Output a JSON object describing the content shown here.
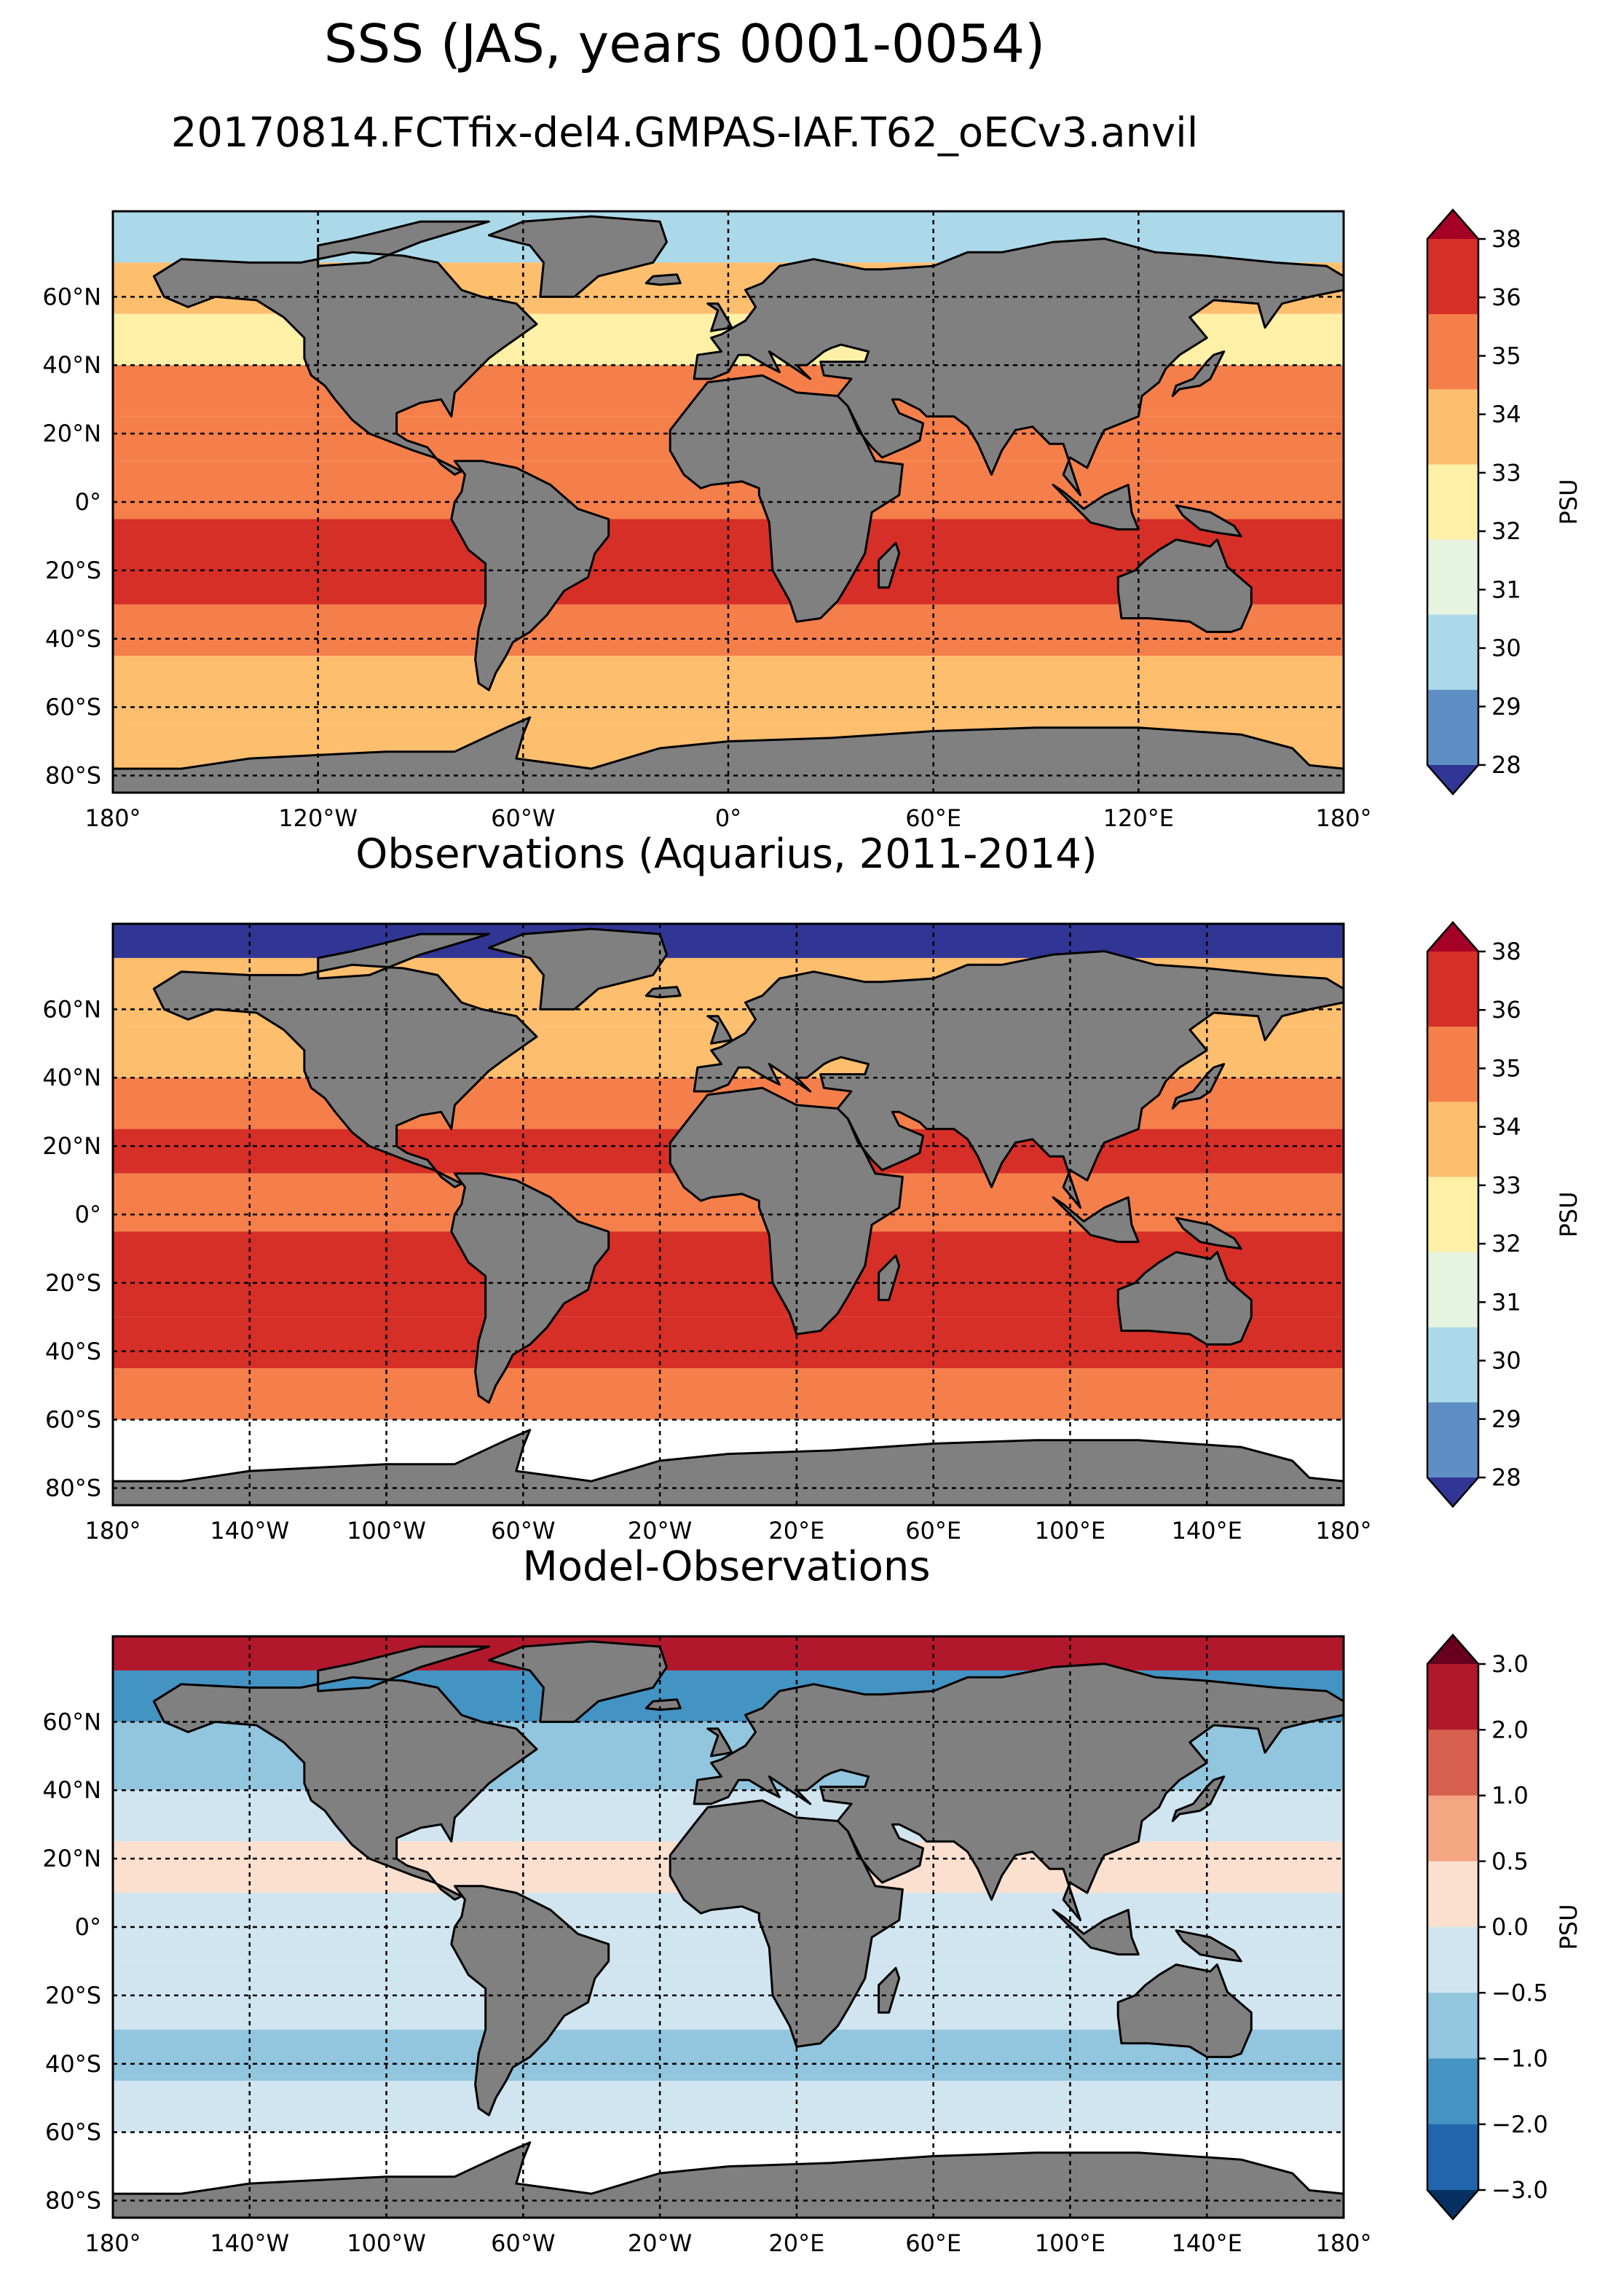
{
  "title": "SSS (JAS, years 0001-0054)",
  "subtitle": "20170814.FCTfix-del4.GMPAS-IAF.T62_oECv3.anvil",
  "colors": {
    "land": "#808080",
    "sss": [
      "#313695",
      "#5e8fc4",
      "#abd9e9",
      "#e7f3e1",
      "#fef0a6",
      "#fdbe6e",
      "#f57f4a",
      "#d62f27",
      "#a50026"
    ],
    "diff": [
      "#053061",
      "#2166ac",
      "#4393c3",
      "#92c5de",
      "#d1e5f0",
      "#fbe0d0",
      "#f4a582",
      "#d6604d",
      "#b2182b",
      "#67001f"
    ]
  },
  "chart_data": [
    {
      "type": "map",
      "name": "model",
      "title": "",
      "lat_ticks": [
        "60°N",
        "40°N",
        "20°N",
        "0°",
        "20°S",
        "40°S",
        "60°S",
        "80°S"
      ],
      "lon_ticks": [
        "180°",
        "120°W",
        "60°W",
        "0°",
        "60°E",
        "120°E",
        "180°"
      ],
      "colorbar": {
        "label": "PSU",
        "ticks": [
          "38",
          "36",
          "35",
          "34",
          "33",
          "32",
          "31",
          "30",
          "29",
          "28"
        ]
      },
      "zonal_bands_psu": [
        {
          "lat": [
            70,
            85
          ],
          "value": 30.5
        },
        {
          "lat": [
            55,
            70
          ],
          "value": 33.5
        },
        {
          "lat": [
            40,
            55
          ],
          "value": 32.8
        },
        {
          "lat": [
            25,
            40
          ],
          "value": 34.2
        },
        {
          "lat": [
            12,
            25
          ],
          "value": 34.6
        },
        {
          "lat": [
            -5,
            12
          ],
          "value": 34.3
        },
        {
          "lat": [
            -30,
            -5
          ],
          "value": 35.3
        },
        {
          "lat": [
            -45,
            -30
          ],
          "value": 34.8
        },
        {
          "lat": [
            -65,
            -45
          ],
          "value": 33.8
        },
        {
          "lat": [
            -85,
            -65
          ],
          "value": 33.3
        }
      ]
    },
    {
      "type": "map",
      "name": "observations",
      "title": "Observations (Aquarius, 2011-2014)",
      "lat_ticks": [
        "60°N",
        "40°N",
        "20°N",
        "0°",
        "20°S",
        "40°S",
        "60°S",
        "80°S"
      ],
      "lon_ticks": [
        "180°",
        "140°W",
        "100°W",
        "60°W",
        "20°W",
        "20°E",
        "60°E",
        "100°E",
        "140°E",
        "180°"
      ],
      "colorbar": {
        "label": "PSU",
        "ticks": [
          "38",
          "36",
          "35",
          "34",
          "33",
          "32",
          "31",
          "30",
          "29",
          "28"
        ]
      },
      "zonal_bands_psu": [
        {
          "lat": [
            75,
            85
          ],
          "value": 28.5
        },
        {
          "lat": [
            55,
            75
          ],
          "value": 33.5
        },
        {
          "lat": [
            40,
            55
          ],
          "value": 33.2
        },
        {
          "lat": [
            25,
            40
          ],
          "value": 34.6
        },
        {
          "lat": [
            12,
            25
          ],
          "value": 35.2
        },
        {
          "lat": [
            -5,
            12
          ],
          "value": 34.4
        },
        {
          "lat": [
            -30,
            -5
          ],
          "value": 35.6
        },
        {
          "lat": [
            -45,
            -30
          ],
          "value": 35.2
        },
        {
          "lat": [
            -60,
            -45
          ],
          "value": 34.4
        }
      ]
    },
    {
      "type": "map",
      "name": "difference",
      "title": "Model-Observations",
      "lat_ticks": [
        "60°N",
        "40°N",
        "20°N",
        "0°",
        "20°S",
        "40°S",
        "60°S",
        "80°S"
      ],
      "lon_ticks": [
        "180°",
        "140°W",
        "100°W",
        "60°W",
        "20°W",
        "20°E",
        "60°E",
        "100°E",
        "140°E",
        "180°"
      ],
      "colorbar": {
        "label": "PSU",
        "ticks": [
          "3.0",
          "2.0",
          "1.0",
          "0.5",
          "0.0",
          "−0.5",
          "−1.0",
          "−2.0",
          "−3.0"
        ]
      },
      "zonal_bands_psu": [
        {
          "lat": [
            75,
            85
          ],
          "value": 2.5
        },
        {
          "lat": [
            60,
            75
          ],
          "value": -1.2
        },
        {
          "lat": [
            40,
            60
          ],
          "value": -0.7
        },
        {
          "lat": [
            25,
            40
          ],
          "value": -0.3
        },
        {
          "lat": [
            10,
            25
          ],
          "value": 0.2
        },
        {
          "lat": [
            -10,
            10
          ],
          "value": -0.2
        },
        {
          "lat": [
            -30,
            -10
          ],
          "value": -0.3
        },
        {
          "lat": [
            -45,
            -30
          ],
          "value": -0.7
        },
        {
          "lat": [
            -60,
            -45
          ],
          "value": -0.4
        }
      ]
    }
  ]
}
